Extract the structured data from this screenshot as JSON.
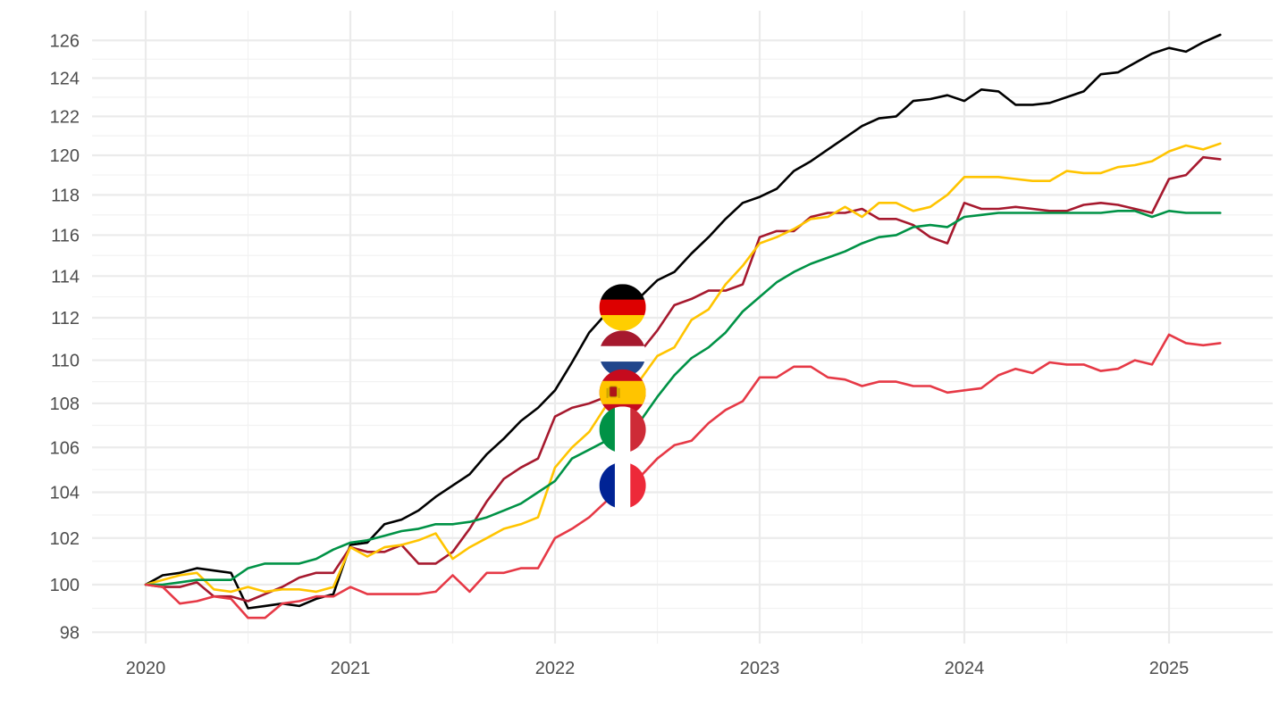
{
  "chart_data": {
    "type": "line",
    "title": "",
    "xlabel": "",
    "ylabel": "",
    "xlim": [
      2019.74,
      2025.51
    ],
    "ylim": [
      97.5,
      127.3
    ],
    "x_ticks": [
      2020,
      2021,
      2022,
      2023,
      2024,
      2025
    ],
    "x_tick_labels": [
      "2020",
      "2021",
      "2022",
      "2023",
      "2024",
      "2025"
    ],
    "y_ticks": [
      98,
      100,
      102,
      104,
      106,
      108,
      110,
      112,
      114,
      116,
      118,
      120,
      122,
      124,
      126
    ],
    "y_tick_labels": [
      "98",
      "100",
      "102",
      "104",
      "106",
      "108",
      "110",
      "112",
      "114",
      "116",
      "118",
      "120",
      "122",
      "124",
      "126"
    ],
    "y_scale": "log",
    "grid": true,
    "legend": "flag markers",
    "series": [
      {
        "color": "#000000",
        "flag": "germany-flag-icon",
        "flag_x": 2022.33,
        "flag_y": 112.5,
        "x": [
          2020.0,
          2020.083,
          2020.167,
          2020.25,
          2020.333,
          2020.417,
          2020.5,
          2020.583,
          2020.667,
          2020.75,
          2020.833,
          2020.917,
          2021.0,
          2021.083,
          2021.167,
          2021.25,
          2021.333,
          2021.417,
          2021.5,
          2021.583,
          2021.667,
          2021.75,
          2021.833,
          2021.917,
          2022.0,
          2022.083,
          2022.167,
          2022.25,
          2022.333,
          2022.417,
          2022.5,
          2022.583,
          2022.667,
          2022.75,
          2022.833,
          2022.917,
          2023.0,
          2023.083,
          2023.167,
          2023.25,
          2023.333,
          2023.417,
          2023.5,
          2023.583,
          2023.667,
          2023.75,
          2023.833,
          2023.917,
          2024.0,
          2024.083,
          2024.167,
          2024.25,
          2024.333,
          2024.417,
          2024.5,
          2024.583,
          2024.667,
          2024.75,
          2024.833,
          2024.917,
          2025.0,
          2025.083,
          2025.167,
          2025.25
        ],
        "values": [
          100.0,
          100.4,
          100.5,
          100.7,
          100.6,
          100.5,
          99.0,
          99.1,
          99.2,
          99.1,
          99.4,
          99.6,
          101.7,
          101.8,
          102.6,
          102.8,
          103.2,
          103.8,
          104.3,
          104.8,
          105.7,
          106.4,
          107.2,
          107.8,
          108.6,
          109.9,
          111.3,
          112.2,
          112.6,
          113.0,
          113.8,
          114.2,
          115.1,
          115.9,
          116.8,
          117.6,
          117.9,
          118.3,
          119.2,
          119.7,
          120.3,
          120.9,
          121.5,
          121.9,
          122.0,
          122.8,
          122.9,
          123.1,
          122.8,
          123.4,
          123.3,
          122.6,
          122.6,
          122.7,
          123.0,
          123.3,
          124.2,
          124.3,
          124.8,
          125.3,
          125.6,
          125.4,
          125.9,
          126.3
        ]
      },
      {
        "color": "#a6192e",
        "flag": "netherlands-flag-icon",
        "flag_x": 2022.33,
        "flag_y": 110.3,
        "x": [
          2020.0,
          2020.083,
          2020.167,
          2020.25,
          2020.333,
          2020.417,
          2020.5,
          2020.583,
          2020.667,
          2020.75,
          2020.833,
          2020.917,
          2021.0,
          2021.083,
          2021.167,
          2021.25,
          2021.333,
          2021.417,
          2021.5,
          2021.583,
          2021.667,
          2021.75,
          2021.833,
          2021.917,
          2022.0,
          2022.083,
          2022.167,
          2022.25,
          2022.333,
          2022.417,
          2022.5,
          2022.583,
          2022.667,
          2022.75,
          2022.833,
          2022.917,
          2023.0,
          2023.083,
          2023.167,
          2023.25,
          2023.333,
          2023.417,
          2023.5,
          2023.583,
          2023.667,
          2023.75,
          2023.833,
          2023.917,
          2024.0,
          2024.083,
          2024.167,
          2024.25,
          2024.333,
          2024.417,
          2024.5,
          2024.583,
          2024.667,
          2024.75,
          2024.833,
          2024.917,
          2025.0,
          2025.083,
          2025.167,
          2025.25
        ],
        "values": [
          100.0,
          99.9,
          99.9,
          100.1,
          99.5,
          99.5,
          99.3,
          99.6,
          99.9,
          100.3,
          100.5,
          100.5,
          101.6,
          101.4,
          101.4,
          101.7,
          100.9,
          100.9,
          101.4,
          102.4,
          103.6,
          104.6,
          105.1,
          105.5,
          107.4,
          107.8,
          108.0,
          108.3,
          109.6,
          110.4,
          111.4,
          112.6,
          112.9,
          113.3,
          113.3,
          113.6,
          115.9,
          116.2,
          116.2,
          116.9,
          117.1,
          117.1,
          117.3,
          116.8,
          116.8,
          116.5,
          115.9,
          115.6,
          117.6,
          117.3,
          117.3,
          117.4,
          117.3,
          117.2,
          117.2,
          117.5,
          117.6,
          117.5,
          117.3,
          117.1,
          118.8,
          119.0,
          119.9,
          119.8
        ]
      },
      {
        "color": "#ffc400",
        "flag": "spain-flag-icon",
        "flag_x": 2022.33,
        "flag_y": 108.5,
        "x": [
          2020.0,
          2020.083,
          2020.167,
          2020.25,
          2020.333,
          2020.417,
          2020.5,
          2020.583,
          2020.667,
          2020.75,
          2020.833,
          2020.917,
          2021.0,
          2021.083,
          2021.167,
          2021.25,
          2021.333,
          2021.417,
          2021.5,
          2021.583,
          2021.667,
          2021.75,
          2021.833,
          2021.917,
          2022.0,
          2022.083,
          2022.167,
          2022.25,
          2022.333,
          2022.417,
          2022.5,
          2022.583,
          2022.667,
          2022.75,
          2022.833,
          2022.917,
          2023.0,
          2023.083,
          2023.167,
          2023.25,
          2023.333,
          2023.417,
          2023.5,
          2023.583,
          2023.667,
          2023.75,
          2023.833,
          2023.917,
          2024.0,
          2024.083,
          2024.167,
          2024.25,
          2024.333,
          2024.417,
          2024.5,
          2024.583,
          2024.667,
          2024.75,
          2024.833,
          2024.917,
          2025.0,
          2025.083,
          2025.167,
          2025.25
        ],
        "values": [
          100.0,
          100.2,
          100.4,
          100.5,
          99.8,
          99.7,
          99.9,
          99.7,
          99.8,
          99.8,
          99.7,
          99.9,
          101.6,
          101.2,
          101.6,
          101.7,
          101.9,
          102.2,
          101.1,
          101.6,
          102.0,
          102.4,
          102.6,
          102.9,
          105.1,
          106.0,
          106.7,
          107.9,
          108.6,
          109.1,
          110.2,
          110.6,
          111.9,
          112.4,
          113.6,
          114.5,
          115.6,
          115.9,
          116.3,
          116.8,
          116.9,
          117.4,
          116.9,
          117.6,
          117.6,
          117.2,
          117.4,
          118.0,
          118.9,
          118.9,
          118.9,
          118.8,
          118.7,
          118.7,
          119.2,
          119.1,
          119.1,
          119.4,
          119.5,
          119.7,
          120.2,
          120.5,
          120.3,
          120.6
        ]
      },
      {
        "color": "#009246",
        "flag": "italy-flag-icon",
        "flag_x": 2022.33,
        "flag_y": 106.8,
        "x": [
          2020.0,
          2020.083,
          2020.167,
          2020.25,
          2020.333,
          2020.417,
          2020.5,
          2020.583,
          2020.667,
          2020.75,
          2020.833,
          2020.917,
          2021.0,
          2021.083,
          2021.167,
          2021.25,
          2021.333,
          2021.417,
          2021.5,
          2021.583,
          2021.667,
          2021.75,
          2021.833,
          2021.917,
          2022.0,
          2022.083,
          2022.167,
          2022.25,
          2022.333,
          2022.417,
          2022.5,
          2022.583,
          2022.667,
          2022.75,
          2022.833,
          2022.917,
          2023.0,
          2023.083,
          2023.167,
          2023.25,
          2023.333,
          2023.417,
          2023.5,
          2023.583,
          2023.667,
          2023.75,
          2023.833,
          2023.917,
          2024.0,
          2024.083,
          2024.167,
          2024.25,
          2024.333,
          2024.417,
          2024.5,
          2024.583,
          2024.667,
          2024.75,
          2024.833,
          2024.917,
          2025.0,
          2025.083,
          2025.167,
          2025.25
        ],
        "values": [
          100.0,
          100.0,
          100.1,
          100.2,
          100.2,
          100.2,
          100.7,
          100.9,
          100.9,
          100.9,
          101.1,
          101.5,
          101.8,
          101.9,
          102.1,
          102.3,
          102.4,
          102.6,
          102.6,
          102.7,
          102.9,
          103.2,
          103.5,
          104.0,
          104.5,
          105.5,
          105.9,
          106.3,
          106.7,
          107.2,
          108.3,
          109.3,
          110.1,
          110.6,
          111.3,
          112.3,
          113.0,
          113.7,
          114.2,
          114.6,
          114.9,
          115.2,
          115.6,
          115.9,
          116.0,
          116.4,
          116.5,
          116.4,
          116.9,
          117.0,
          117.1,
          117.1,
          117.1,
          117.1,
          117.1,
          117.1,
          117.1,
          117.2,
          117.2,
          116.9,
          117.2,
          117.1,
          117.1,
          117.1
        ]
      },
      {
        "color": "#e63946",
        "flag": "france-flag-icon",
        "flag_x": 2022.33,
        "flag_y": 104.3,
        "x": [
          2020.0,
          2020.083,
          2020.167,
          2020.25,
          2020.333,
          2020.417,
          2020.5,
          2020.583,
          2020.667,
          2020.75,
          2020.833,
          2020.917,
          2021.0,
          2021.083,
          2021.167,
          2021.25,
          2021.333,
          2021.417,
          2021.5,
          2021.583,
          2021.667,
          2021.75,
          2021.833,
          2021.917,
          2022.0,
          2022.083,
          2022.167,
          2022.25,
          2022.333,
          2022.417,
          2022.5,
          2022.583,
          2022.667,
          2022.75,
          2022.833,
          2022.917,
          2023.0,
          2023.083,
          2023.167,
          2023.25,
          2023.333,
          2023.417,
          2023.5,
          2023.583,
          2023.667,
          2023.75,
          2023.833,
          2023.917,
          2024.0,
          2024.083,
          2024.167,
          2024.25,
          2024.333,
          2024.417,
          2024.5,
          2024.583,
          2024.667,
          2024.75,
          2024.833,
          2024.917,
          2025.0,
          2025.083,
          2025.167,
          2025.25
        ],
        "values": [
          100.0,
          99.9,
          99.2,
          99.3,
          99.5,
          99.4,
          98.6,
          98.6,
          99.2,
          99.3,
          99.5,
          99.5,
          99.9,
          99.6,
          99.6,
          99.6,
          99.6,
          99.7,
          100.4,
          99.7,
          100.5,
          100.5,
          100.7,
          100.7,
          102.0,
          102.4,
          102.9,
          103.6,
          104.1,
          104.7,
          105.5,
          106.1,
          106.3,
          107.1,
          107.7,
          108.1,
          109.2,
          109.2,
          109.7,
          109.7,
          109.2,
          109.1,
          108.8,
          109.0,
          109.0,
          108.8,
          108.8,
          108.5,
          108.6,
          108.7,
          109.3,
          109.6,
          109.4,
          109.9,
          109.8,
          109.8,
          109.5,
          109.6,
          110.0,
          109.8,
          111.2,
          110.8,
          110.7,
          110.8
        ]
      }
    ]
  }
}
